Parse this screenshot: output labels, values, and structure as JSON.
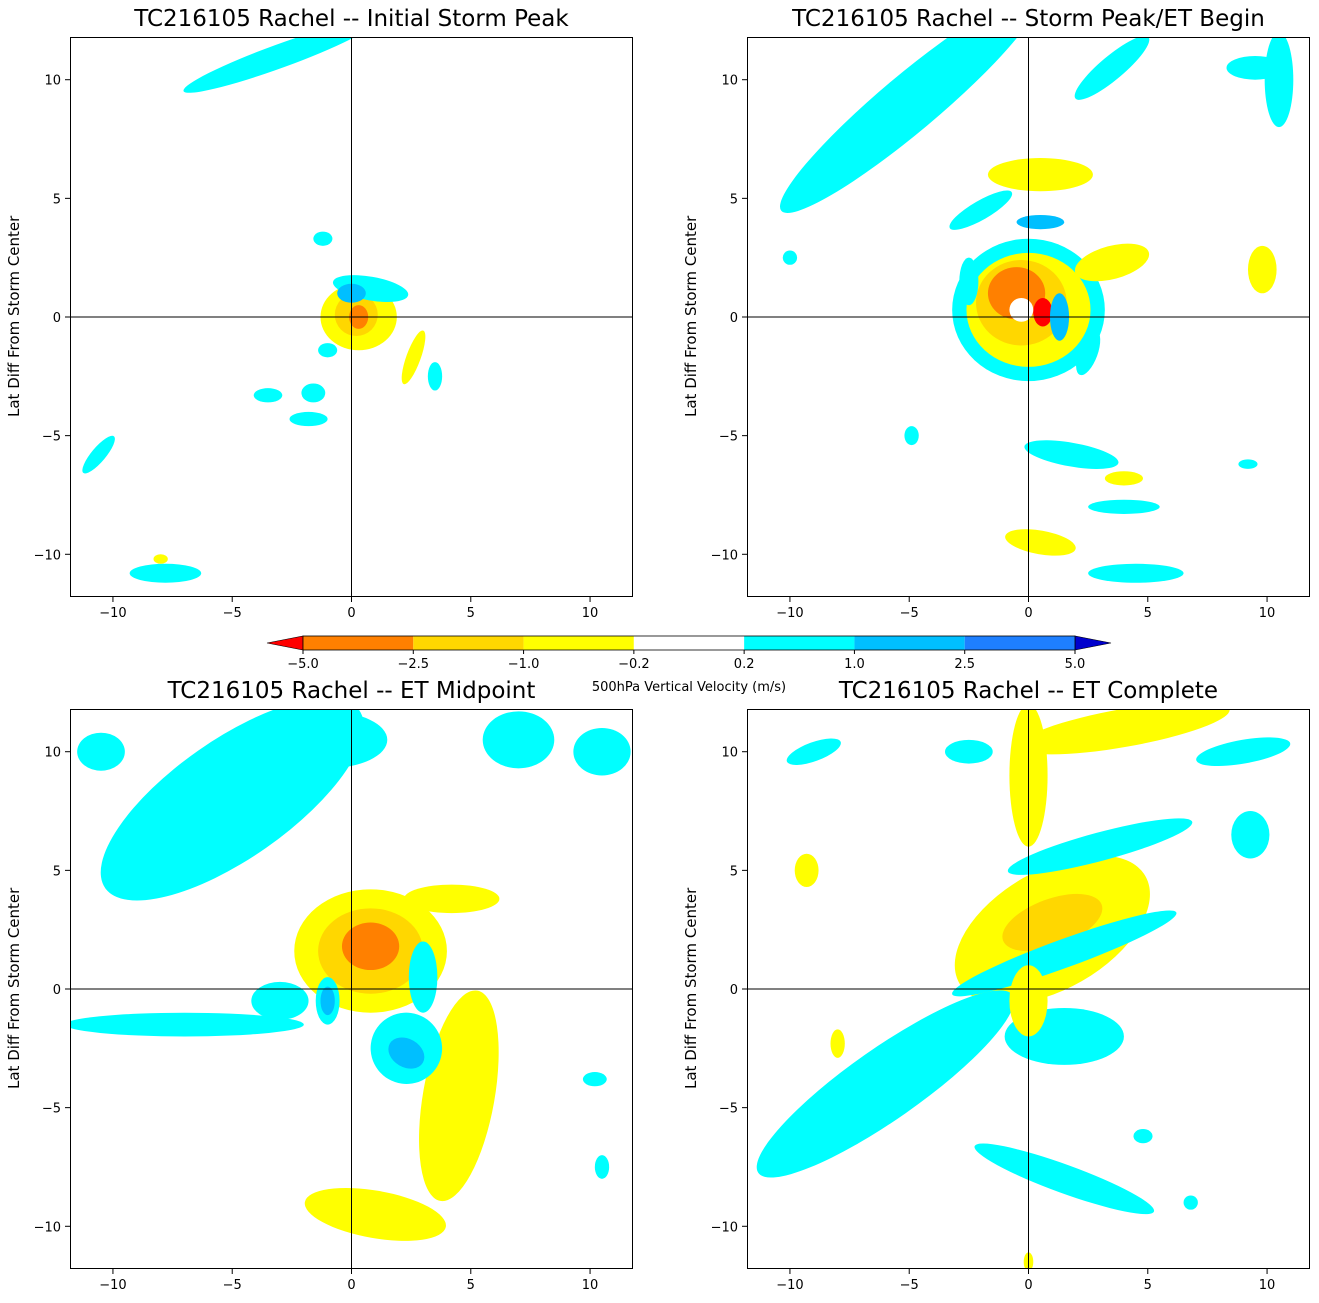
{
  "colorbar": {
    "label": "500hPa Vertical Velocity (m/s)",
    "levels": [
      -5.0,
      -2.5,
      -1.0,
      -0.2,
      0.2,
      1.0,
      2.5,
      5.0
    ],
    "tick_labels": [
      "−5.0",
      "−2.5",
      "−1.0",
      "−0.2",
      "0.2",
      "1.0",
      "2.5",
      "5.0"
    ],
    "colors": [
      "#ff0000",
      "#ff8000",
      "#ffd700",
      "#ffff00",
      "#ffffff",
      "#00ffff",
      "#00bfff",
      "#1e7fff",
      "#0000cd"
    ],
    "extend": "both"
  },
  "chart_data": [
    {
      "type": "heatmap",
      "title": "TC216105 Rachel -- Initial Storm Peak",
      "xlabel": "",
      "ylabel": "Lat Diff From Storm Center",
      "xlim": [
        -11.8,
        11.8
      ],
      "ylim": [
        -11.8,
        11.8
      ],
      "xticks": [
        -10,
        -5,
        0,
        5,
        10
      ],
      "yticks": [
        -10,
        -5,
        0,
        5,
        10
      ],
      "xtick_labels": [
        "−10",
        "−5",
        "0",
        "5",
        "10"
      ],
      "ytick_labels": [
        "−10",
        "−5",
        "0",
        "5",
        "10"
      ],
      "crosshair": [
        0,
        0
      ],
      "blobs": [
        {
          "x": 0.3,
          "y": 0.0,
          "rx": 1.6,
          "ry": 1.4,
          "rot": 0,
          "value": -0.5
        },
        {
          "x": 0.2,
          "y": 0.1,
          "rx": 0.9,
          "ry": 0.9,
          "rot": 0,
          "value": -1.5
        },
        {
          "x": 0.3,
          "y": 0.0,
          "rx": 0.4,
          "ry": 0.5,
          "rot": 0,
          "value": -3.5
        },
        {
          "x": 0.8,
          "y": 1.2,
          "rx": 1.6,
          "ry": 0.5,
          "rot": 10,
          "value": 0.5
        },
        {
          "x": 0.0,
          "y": 1.0,
          "rx": 0.6,
          "ry": 0.4,
          "rot": 0,
          "value": 1.5
        },
        {
          "x": 2.6,
          "y": -1.7,
          "rx": 0.3,
          "ry": 1.2,
          "rot": 20,
          "value": -0.5
        },
        {
          "x": 3.5,
          "y": -2.5,
          "rx": 0.3,
          "ry": 0.6,
          "rot": 0,
          "value": 0.5
        },
        {
          "x": -1.0,
          "y": -1.4,
          "rx": 0.4,
          "ry": 0.3,
          "rot": 0,
          "value": 0.5
        },
        {
          "x": -1.6,
          "y": -3.2,
          "rx": 0.5,
          "ry": 0.4,
          "rot": 0,
          "value": 0.5
        },
        {
          "x": -1.8,
          "y": -4.3,
          "rx": 0.8,
          "ry": 0.3,
          "rot": 0,
          "value": 0.5
        },
        {
          "x": -3.5,
          "y": -3.3,
          "rx": 0.6,
          "ry": 0.3,
          "rot": 0,
          "value": 0.5
        },
        {
          "x": -1.2,
          "y": 3.3,
          "rx": 0.4,
          "ry": 0.3,
          "rot": 0,
          "value": 0.5
        },
        {
          "x": -3.0,
          "y": 11.0,
          "rx": 4.3,
          "ry": 0.5,
          "rot": -20,
          "value": 0.5
        },
        {
          "x": -10.6,
          "y": -5.8,
          "rx": 1.0,
          "ry": 0.3,
          "rot": -50,
          "value": 0.5
        },
        {
          "x": -7.8,
          "y": -10.8,
          "rx": 1.5,
          "ry": 0.4,
          "rot": 0,
          "value": 0.5
        },
        {
          "x": -8.0,
          "y": -10.2,
          "rx": 0.3,
          "ry": 0.2,
          "rot": 0,
          "value": -0.5
        }
      ]
    },
    {
      "type": "heatmap",
      "title": "TC216105 Rachel -- Storm Peak/ET Begin",
      "xlabel": "",
      "ylabel": "Lat Diff From Storm Center",
      "xlim": [
        -11.8,
        11.8
      ],
      "ylim": [
        -11.8,
        11.8
      ],
      "xticks": [
        -10,
        -5,
        0,
        5,
        10
      ],
      "yticks": [
        -10,
        -5,
        0,
        5,
        10
      ],
      "xtick_labels": [
        "−10",
        "−5",
        "0",
        "5",
        "10"
      ],
      "ytick_labels": [
        "−10",
        "−5",
        "0",
        "5",
        "10"
      ],
      "crosshair": [
        0,
        0
      ],
      "blobs": [
        {
          "x": 0.0,
          "y": 0.3,
          "rx": 3.2,
          "ry": 3.0,
          "rot": 0,
          "value": 0.5
        },
        {
          "x": 0.0,
          "y": 0.3,
          "rx": 2.6,
          "ry": 2.4,
          "rot": 0,
          "value": -0.5
        },
        {
          "x": -0.3,
          "y": 0.6,
          "rx": 1.9,
          "ry": 1.8,
          "rot": 0,
          "value": -1.5
        },
        {
          "x": -0.5,
          "y": 1.0,
          "rx": 1.2,
          "ry": 1.1,
          "rot": 0,
          "value": -3.5
        },
        {
          "x": 0.6,
          "y": 0.2,
          "rx": 0.4,
          "ry": 0.6,
          "rot": 0,
          "value": -5.5
        },
        {
          "x": 1.3,
          "y": 0.0,
          "rx": 0.4,
          "ry": 1.0,
          "rot": 0,
          "value": 1.5
        },
        {
          "x": -0.3,
          "y": 0.3,
          "rx": 0.5,
          "ry": 0.5,
          "rot": 0,
          "value": 0.0
        },
        {
          "x": 0.5,
          "y": 6.0,
          "rx": 2.2,
          "ry": 0.7,
          "rot": 0,
          "value": -0.5
        },
        {
          "x": 3.5,
          "y": 2.3,
          "rx": 1.6,
          "ry": 0.7,
          "rot": -15,
          "value": -0.5
        },
        {
          "x": 9.8,
          "y": 2.0,
          "rx": 0.6,
          "ry": 1.0,
          "rot": 0,
          "value": -0.5
        },
        {
          "x": -5.0,
          "y": 9.0,
          "rx": 7.0,
          "ry": 1.2,
          "rot": -40,
          "value": 0.5
        },
        {
          "x": 3.5,
          "y": 10.5,
          "rx": 2.0,
          "ry": 0.5,
          "rot": -40,
          "value": 0.5
        },
        {
          "x": 10.5,
          "y": 10.0,
          "rx": 0.6,
          "ry": 2.0,
          "rot": 0,
          "value": 0.5
        },
        {
          "x": 9.5,
          "y": 10.5,
          "rx": 1.2,
          "ry": 0.5,
          "rot": 0,
          "value": 0.5
        },
        {
          "x": -2.0,
          "y": 4.5,
          "rx": 1.5,
          "ry": 0.4,
          "rot": -30,
          "value": 0.5
        },
        {
          "x": 0.5,
          "y": 4.0,
          "rx": 1.0,
          "ry": 0.3,
          "rot": 0,
          "value": 1.5
        },
        {
          "x": -2.5,
          "y": 1.5,
          "rx": 0.4,
          "ry": 1.0,
          "rot": 0,
          "value": 0.5
        },
        {
          "x": 2.5,
          "y": -1.5,
          "rx": 0.4,
          "ry": 1.0,
          "rot": 20,
          "value": 0.5
        },
        {
          "x": 1.8,
          "y": -5.8,
          "rx": 2.0,
          "ry": 0.5,
          "rot": 10,
          "value": 0.5
        },
        {
          "x": 0.5,
          "y": -9.5,
          "rx": 1.5,
          "ry": 0.5,
          "rot": 10,
          "value": -0.5
        },
        {
          "x": 4.5,
          "y": -10.8,
          "rx": 2.0,
          "ry": 0.4,
          "rot": 0,
          "value": 0.5
        },
        {
          "x": 4.0,
          "y": -8.0,
          "rx": 1.5,
          "ry": 0.3,
          "rot": 0,
          "value": 0.5
        },
        {
          "x": 4.0,
          "y": -6.8,
          "rx": 0.8,
          "ry": 0.3,
          "rot": 0,
          "value": -0.5
        },
        {
          "x": 9.2,
          "y": -6.2,
          "rx": 0.4,
          "ry": 0.2,
          "rot": 0,
          "value": 0.5
        },
        {
          "x": -4.9,
          "y": -5.0,
          "rx": 0.3,
          "ry": 0.4,
          "rot": 0,
          "value": 0.5
        },
        {
          "x": -10.0,
          "y": 2.5,
          "rx": 0.3,
          "ry": 0.3,
          "rot": 0,
          "value": 0.5
        }
      ]
    },
    {
      "type": "heatmap",
      "title": "TC216105 Rachel -- ET Midpoint",
      "xlabel": "",
      "ylabel": "Lat Diff From Storm Center",
      "xlim": [
        -11.8,
        11.8
      ],
      "ylim": [
        -11.8,
        11.8
      ],
      "xticks": [
        -10,
        -5,
        0,
        5,
        10
      ],
      "yticks": [
        -10,
        -5,
        0,
        5,
        10
      ],
      "xtick_labels": [
        "−10",
        "−5",
        "0",
        "5",
        "10"
      ],
      "ytick_labels": [
        "−10",
        "−5",
        "0",
        "5",
        "10"
      ],
      "crosshair": [
        0,
        0
      ],
      "blobs": [
        {
          "x": -5.0,
          "y": 8.0,
          "rx": 6.5,
          "ry": 2.5,
          "rot": -35,
          "value": 0.5
        },
        {
          "x": -1.0,
          "y": 10.5,
          "rx": 2.5,
          "ry": 1.2,
          "rot": 0,
          "value": 0.5
        },
        {
          "x": 7.0,
          "y": 10.5,
          "rx": 1.5,
          "ry": 1.2,
          "rot": 0,
          "value": 0.5
        },
        {
          "x": 10.5,
          "y": 10.0,
          "rx": 1.2,
          "ry": 1.0,
          "rot": 0,
          "value": 0.5
        },
        {
          "x": -10.5,
          "y": 10.0,
          "rx": 1.0,
          "ry": 0.8,
          "rot": 0,
          "value": 0.5
        },
        {
          "x": 0.8,
          "y": 1.6,
          "rx": 3.2,
          "ry": 2.6,
          "rot": 0,
          "value": -0.5
        },
        {
          "x": 0.8,
          "y": 1.6,
          "rx": 2.2,
          "ry": 1.8,
          "rot": 0,
          "value": -1.5
        },
        {
          "x": 0.8,
          "y": 1.8,
          "rx": 1.2,
          "ry": 1.0,
          "rot": 0,
          "value": -3.5
        },
        {
          "x": 4.5,
          "y": -4.5,
          "rx": 1.5,
          "ry": 4.5,
          "rot": 10,
          "value": -0.5
        },
        {
          "x": 1.0,
          "y": -9.5,
          "rx": 3.0,
          "ry": 1.0,
          "rot": 10,
          "value": -0.5
        },
        {
          "x": 4.2,
          "y": 3.8,
          "rx": 2.0,
          "ry": 0.6,
          "rot": 0,
          "value": -0.5
        },
        {
          "x": 2.3,
          "y": -2.5,
          "rx": 1.5,
          "ry": 1.5,
          "rot": 30,
          "value": 0.5
        },
        {
          "x": 2.3,
          "y": -2.7,
          "rx": 0.8,
          "ry": 0.6,
          "rot": 30,
          "value": 1.5
        },
        {
          "x": -1.0,
          "y": -0.5,
          "rx": 0.5,
          "ry": 1.0,
          "rot": 0,
          "value": 0.5
        },
        {
          "x": -1.0,
          "y": -0.5,
          "rx": 0.3,
          "ry": 0.6,
          "rot": 0,
          "value": 1.5
        },
        {
          "x": 3.0,
          "y": 0.5,
          "rx": 0.6,
          "ry": 1.5,
          "rot": 0,
          "value": 0.5
        },
        {
          "x": -7.0,
          "y": -1.5,
          "rx": 5.0,
          "ry": 0.5,
          "rot": 0,
          "value": 0.5
        },
        {
          "x": -3.0,
          "y": -0.5,
          "rx": 1.2,
          "ry": 0.8,
          "rot": 0,
          "value": 0.5
        },
        {
          "x": 10.2,
          "y": -3.8,
          "rx": 0.5,
          "ry": 0.3,
          "rot": 0,
          "value": 0.5
        },
        {
          "x": 10.5,
          "y": -7.5,
          "rx": 0.3,
          "ry": 0.5,
          "rot": 0,
          "value": 0.5
        }
      ]
    },
    {
      "type": "heatmap",
      "title": "TC216105 Rachel -- ET Complete",
      "xlabel": "",
      "ylabel": "Lat Diff From Storm Center",
      "xlim": [
        -11.8,
        11.8
      ],
      "ylim": [
        -11.8,
        11.8
      ],
      "xticks": [
        -10,
        -5,
        0,
        5,
        10
      ],
      "yticks": [
        -10,
        -5,
        0,
        5,
        10
      ],
      "xtick_labels": [
        "−10",
        "−5",
        "0",
        "5",
        "10"
      ],
      "ytick_labels": [
        "−10",
        "−5",
        "0",
        "5",
        "10"
      ],
      "crosshair": [
        0,
        0
      ],
      "blobs": [
        {
          "x": 1.0,
          "y": 2.5,
          "rx": 4.5,
          "ry": 2.5,
          "rot": -30,
          "value": -0.5
        },
        {
          "x": 1.0,
          "y": 2.8,
          "rx": 2.2,
          "ry": 1.0,
          "rot": -20,
          "value": -1.5
        },
        {
          "x": 1.5,
          "y": 1.5,
          "rx": 5.0,
          "ry": 0.6,
          "rot": -20,
          "value": 0.5
        },
        {
          "x": 4.0,
          "y": 11.0,
          "rx": 4.5,
          "ry": 0.8,
          "rot": -10,
          "value": -0.5
        },
        {
          "x": -6.0,
          "y": -4.0,
          "rx": 6.5,
          "ry": 1.5,
          "rot": -35,
          "value": 0.5
        },
        {
          "x": 1.5,
          "y": -2.0,
          "rx": 2.5,
          "ry": 1.2,
          "rot": 0,
          "value": 0.5
        },
        {
          "x": 0.0,
          "y": -0.5,
          "rx": 0.8,
          "ry": 1.5,
          "rot": 0,
          "value": -0.5
        },
        {
          "x": 3.0,
          "y": 6.0,
          "rx": 4.0,
          "ry": 0.6,
          "rot": -15,
          "value": 0.5
        },
        {
          "x": 0.0,
          "y": 9.0,
          "rx": 0.8,
          "ry": 3.0,
          "rot": 0,
          "value": -0.5
        },
        {
          "x": 9.0,
          "y": 10.0,
          "rx": 2.0,
          "ry": 0.5,
          "rot": -10,
          "value": 0.5
        },
        {
          "x": 9.3,
          "y": 6.5,
          "rx": 0.8,
          "ry": 1.0,
          "rot": 0,
          "value": 0.5
        },
        {
          "x": -9.0,
          "y": 10.0,
          "rx": 1.2,
          "ry": 0.4,
          "rot": -20,
          "value": 0.5
        },
        {
          "x": -2.5,
          "y": 10.0,
          "rx": 1.0,
          "ry": 0.5,
          "rot": 0,
          "value": 0.5
        },
        {
          "x": -9.3,
          "y": 5.0,
          "rx": 0.5,
          "ry": 0.7,
          "rot": 0,
          "value": -0.5
        },
        {
          "x": -8.0,
          "y": -2.3,
          "rx": 0.3,
          "ry": 0.6,
          "rot": 0,
          "value": -0.5
        },
        {
          "x": 1.5,
          "y": -8.0,
          "rx": 4.0,
          "ry": 0.6,
          "rot": 20,
          "value": 0.5
        },
        {
          "x": 0.0,
          "y": -11.5,
          "rx": 0.2,
          "ry": 0.4,
          "rot": 0,
          "value": -0.5
        },
        {
          "x": 4.8,
          "y": -6.2,
          "rx": 0.4,
          "ry": 0.3,
          "rot": 0,
          "value": 0.5
        },
        {
          "x": 6.8,
          "y": -9.0,
          "rx": 0.3,
          "ry": 0.3,
          "rot": 0,
          "value": 0.5
        }
      ]
    }
  ]
}
